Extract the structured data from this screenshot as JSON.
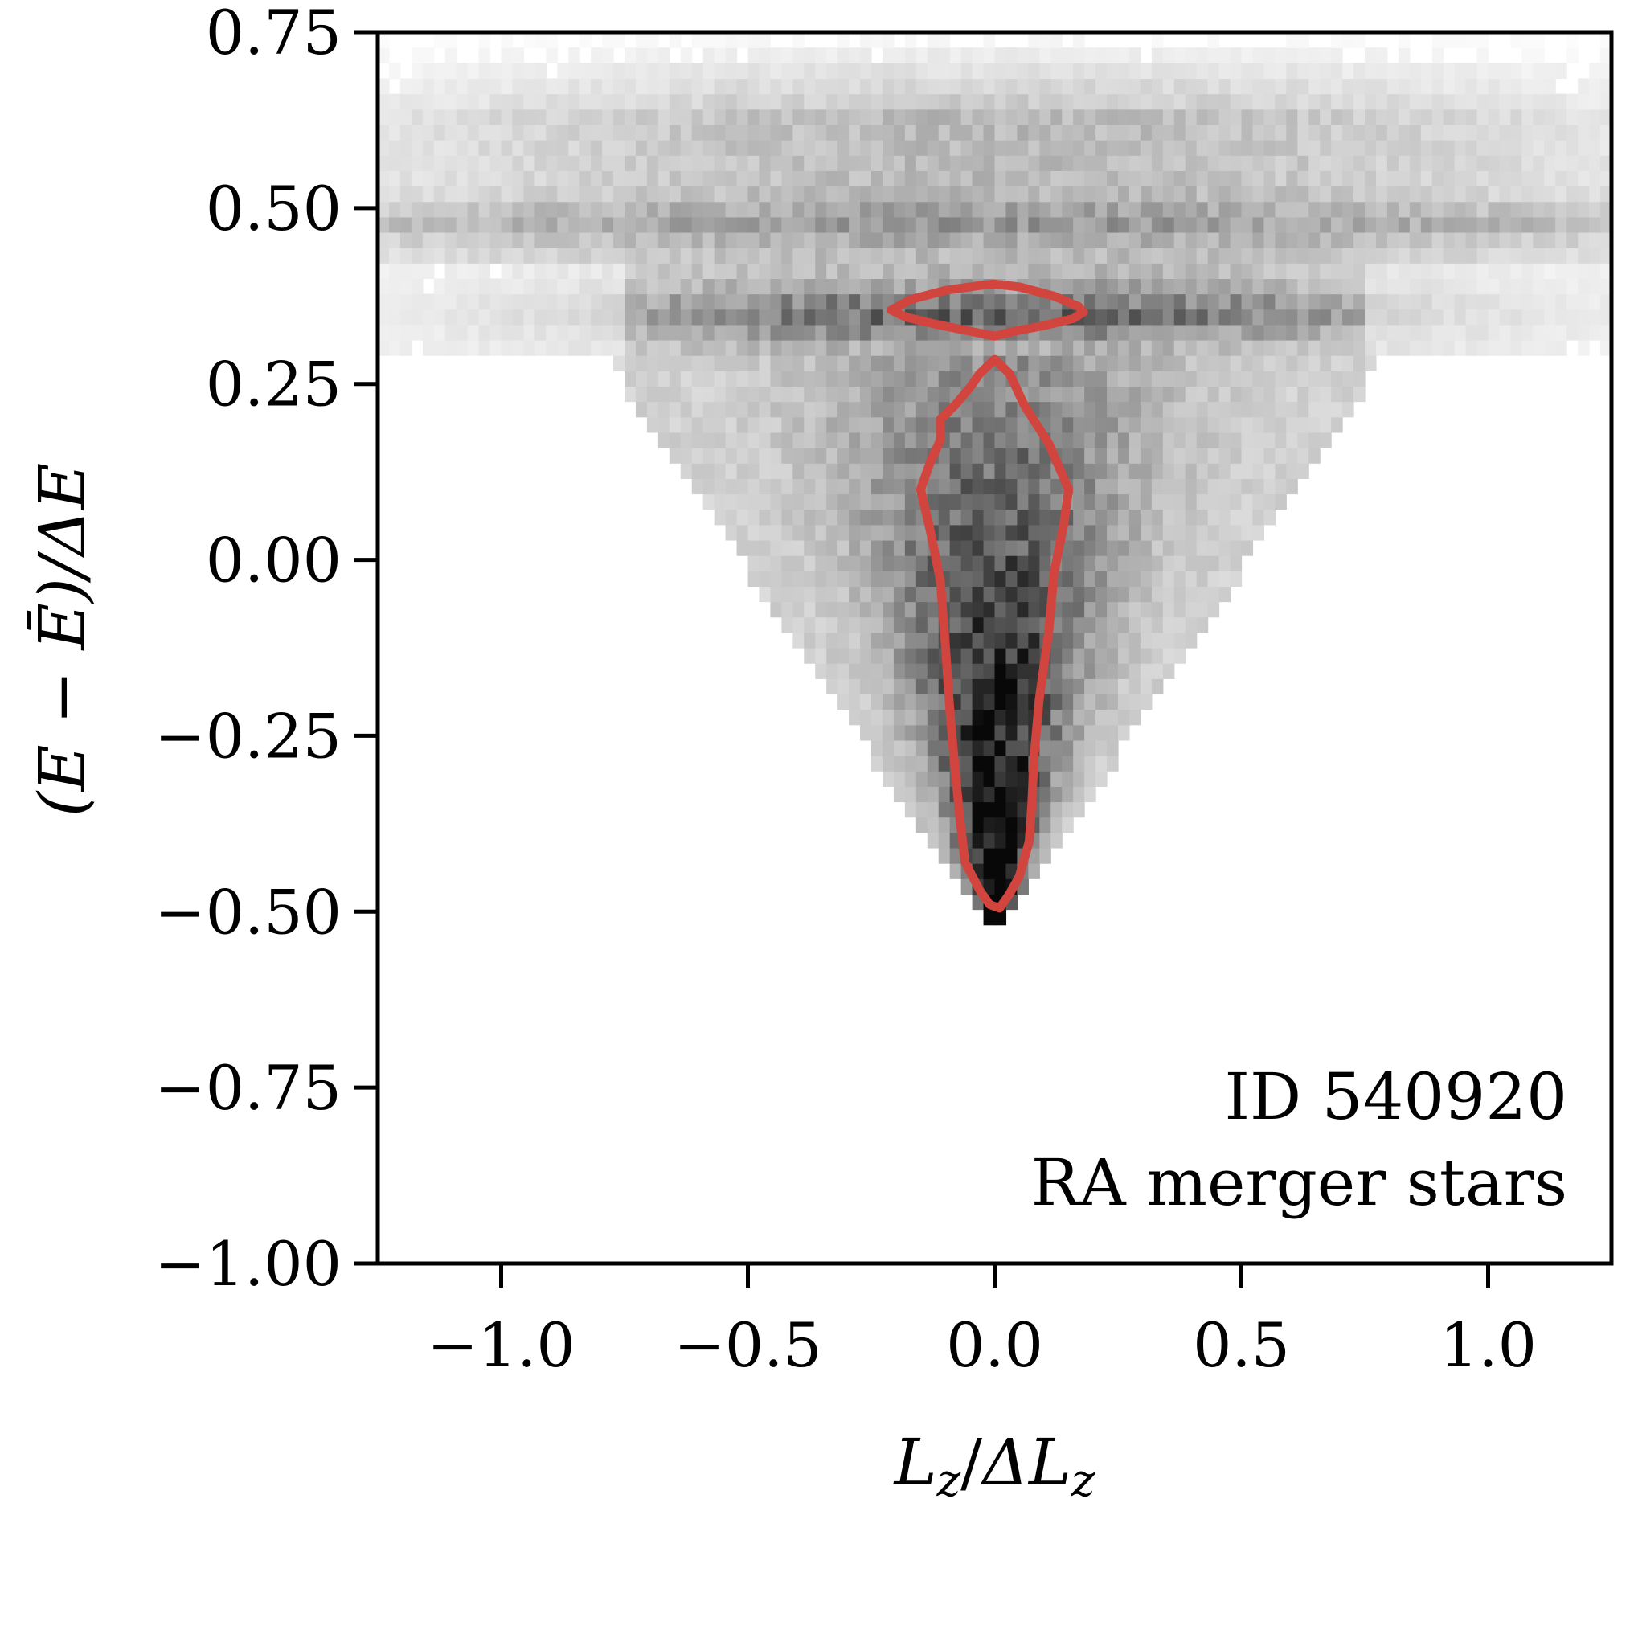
{
  "chart_data": {
    "type": "heatmap",
    "title": "",
    "xlabel": "L_z/ΔL_z",
    "ylabel": "(E − Ē)/ΔE",
    "xlim": [
      -1.25,
      1.25
    ],
    "ylim": [
      -1.0,
      0.75
    ],
    "xticks": [
      -1.0,
      -0.5,
      0.0,
      0.5,
      1.0
    ],
    "xtick_labels": [
      "−1.0",
      "−0.5",
      "0.0",
      "0.5",
      "1.0"
    ],
    "yticks": [
      0.75,
      0.5,
      0.25,
      0.0,
      -0.25,
      -0.5,
      -0.75,
      -1.0
    ],
    "ytick_labels": [
      "0.75",
      "0.50",
      "0.25",
      "0.00",
      "−0.25",
      "−0.50",
      "−0.75",
      "−1.00"
    ],
    "annotations": [
      "ID 540920",
      "RA merger stars"
    ],
    "colormap": "greys",
    "grid": false,
    "density_model": {
      "description_of_structure": "V-shaped 2D histogram of star counts, apex near (0,-0.5), widening upward; dense horizontal band near y=0.35 and fainter band near y=0.48",
      "apex_y": -0.5,
      "top_band_y": [
        0.35,
        0.48
      ]
    },
    "contours": [
      {
        "color": "#d1453e",
        "points": [
          [
            -0.21,
            0.355
          ],
          [
            -0.17,
            0.37
          ],
          [
            -0.1,
            0.383
          ],
          [
            -0.03,
            0.39
          ],
          [
            0.0,
            0.392
          ],
          [
            0.05,
            0.388
          ],
          [
            0.12,
            0.375
          ],
          [
            0.17,
            0.36
          ],
          [
            0.18,
            0.352
          ],
          [
            0.16,
            0.343
          ],
          [
            0.1,
            0.333
          ],
          [
            0.04,
            0.325
          ],
          [
            0.0,
            0.318
          ],
          [
            -0.05,
            0.325
          ],
          [
            -0.12,
            0.335
          ],
          [
            -0.18,
            0.345
          ],
          [
            -0.21,
            0.355
          ]
        ]
      },
      {
        "color": "#d1453e",
        "points": [
          [
            0.0,
            0.285
          ],
          [
            0.03,
            0.265
          ],
          [
            0.06,
            0.22
          ],
          [
            0.11,
            0.165
          ],
          [
            0.15,
            0.1
          ],
          [
            0.14,
            0.05
          ],
          [
            0.12,
            -0.02
          ],
          [
            0.11,
            -0.1
          ],
          [
            0.09,
            -0.2
          ],
          [
            0.08,
            -0.28
          ],
          [
            0.075,
            -0.35
          ],
          [
            0.07,
            -0.4
          ],
          [
            0.05,
            -0.45
          ],
          [
            0.03,
            -0.475
          ],
          [
            0.01,
            -0.495
          ],
          [
            -0.01,
            -0.49
          ],
          [
            -0.03,
            -0.47
          ],
          [
            -0.06,
            -0.43
          ],
          [
            -0.07,
            -0.37
          ],
          [
            -0.08,
            -0.3
          ],
          [
            -0.09,
            -0.22
          ],
          [
            -0.1,
            -0.12
          ],
          [
            -0.11,
            -0.03
          ],
          [
            -0.13,
            0.04
          ],
          [
            -0.15,
            0.1
          ],
          [
            -0.13,
            0.14
          ],
          [
            -0.11,
            0.17
          ],
          [
            -0.11,
            0.2
          ],
          [
            -0.08,
            0.22
          ],
          [
            -0.05,
            0.245
          ],
          [
            -0.03,
            0.265
          ],
          [
            0.0,
            0.285
          ]
        ]
      }
    ]
  }
}
